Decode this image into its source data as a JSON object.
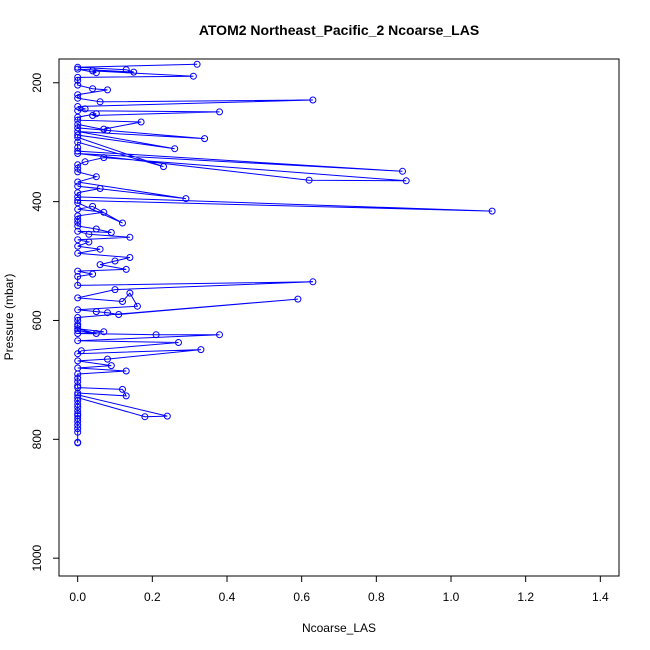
{
  "chart_data": {
    "type": "line",
    "title": "ATOM2 Northeast_Pacific_2 Ncoarse_LAS",
    "xlabel": "Ncoarse_LAS",
    "ylabel": "Pressure (mbar)",
    "xlim": [
      -0.05,
      1.45
    ],
    "ylim": [
      1030,
      160
    ],
    "y_reversed": true,
    "grid": false,
    "xticks": [
      0,
      0.2,
      0.4,
      0.6,
      0.8,
      1.0,
      1.2,
      1.4
    ],
    "xtick_labels": [
      "0.0",
      "0.2",
      "0.4",
      "0.6",
      "0.8",
      "1.0",
      "1.2",
      "1.4"
    ],
    "yticks": [
      200,
      400,
      600,
      800,
      1000
    ],
    "ytick_labels": [
      "200",
      "400",
      "600",
      "800",
      "1000"
    ],
    "series_color": "#0000ff",
    "series": [
      {
        "x": [
          0.0,
          0.0,
          0.0,
          0.0,
          0.0,
          0.0,
          0.0,
          0.0,
          0.0,
          0.0,
          0.0,
          0.0,
          0.0,
          0.0,
          0.18,
          0.24,
          0.0,
          0.0,
          0.13,
          0.12,
          0.0,
          0.0,
          0.0,
          0.0,
          0.0,
          0.13,
          0.0,
          0.09,
          0.0,
          0.08,
          0.33,
          0.0,
          0.01,
          0.27,
          0.0,
          0.38,
          0.21,
          0.0,
          0.07,
          0.0,
          0.05,
          0.0,
          0.0,
          0.0,
          0.0,
          0.0,
          0.59,
          0.11,
          0.08,
          0.05,
          0.0,
          0.16,
          0.14,
          0.12,
          0.0,
          0.1,
          0.63,
          0.0,
          0.0,
          0.04,
          0.0,
          0.13,
          0.06,
          0.1,
          0.14,
          0.0,
          0.06,
          0.0,
          0.03,
          0.0,
          0.14,
          0.03,
          0.0,
          0.09,
          0.05,
          0.0,
          0.0,
          0.0,
          0.0,
          0.07,
          0.0,
          0.04,
          0.12,
          0.0,
          0.0,
          1.11,
          0.0,
          0.0,
          0.06,
          0.0,
          0.29,
          0.0,
          0.05,
          0.0,
          0.0,
          0.0,
          0.02,
          0.07,
          0.88,
          0.62,
          0.0,
          0.87,
          0.0,
          0.0,
          0.0,
          0.23,
          0.0,
          0.0,
          0.26,
          0.0,
          0.34,
          0.0,
          0.0,
          0.08,
          0.07,
          0.17,
          0.0,
          0.0,
          0.05,
          0.04,
          0.38,
          0.0,
          0.02,
          0.0,
          0.63,
          0.06,
          0.0,
          0.0,
          0.08,
          0.04,
          0.0,
          0.0,
          0.0,
          0.31,
          0.04,
          0.05,
          0.0,
          0.15,
          0.13,
          0.0,
          0.32
        ],
        "y": [
          806,
          805,
          788,
          782,
          776,
          770,
          765,
          760,
          757,
          752,
          746,
          741,
          735,
          730,
          762,
          761,
          725,
          722,
          727,
          716,
          713,
          710,
          703,
          697,
          690,
          685,
          680,
          676,
          668,
          665,
          649,
          656,
          651,
          637,
          634,
          624,
          624,
          622,
          619,
          614,
          622,
          617,
          610,
          607,
          600,
          595,
          564,
          590,
          587,
          585,
          582,
          576,
          554,
          568,
          562,
          548,
          535,
          541,
          526,
          522,
          517,
          514,
          506,
          500,
          494,
          487,
          480,
          475,
          468,
          464,
          460,
          455,
          450,
          452,
          446,
          441,
          435,
          430,
          424,
          418,
          413,
          408,
          436,
          402,
          398,
          416,
          392,
          385,
          378,
          374,
          395,
          367,
          358,
          350,
          344,
          338,
          333,
          326,
          365,
          364,
          319,
          349,
          315,
          309,
          300,
          341,
          292,
          288,
          311,
          282,
          294,
          276,
          270,
          280,
          278,
          266,
          263,
          258,
          252,
          255,
          249,
          247,
          244,
          240,
          229,
          232,
          226,
          220,
          212,
          210,
          204,
          196,
          191,
          189,
          180,
          183,
          177,
          182,
          178,
          174,
          169
        ]
      }
    ]
  }
}
